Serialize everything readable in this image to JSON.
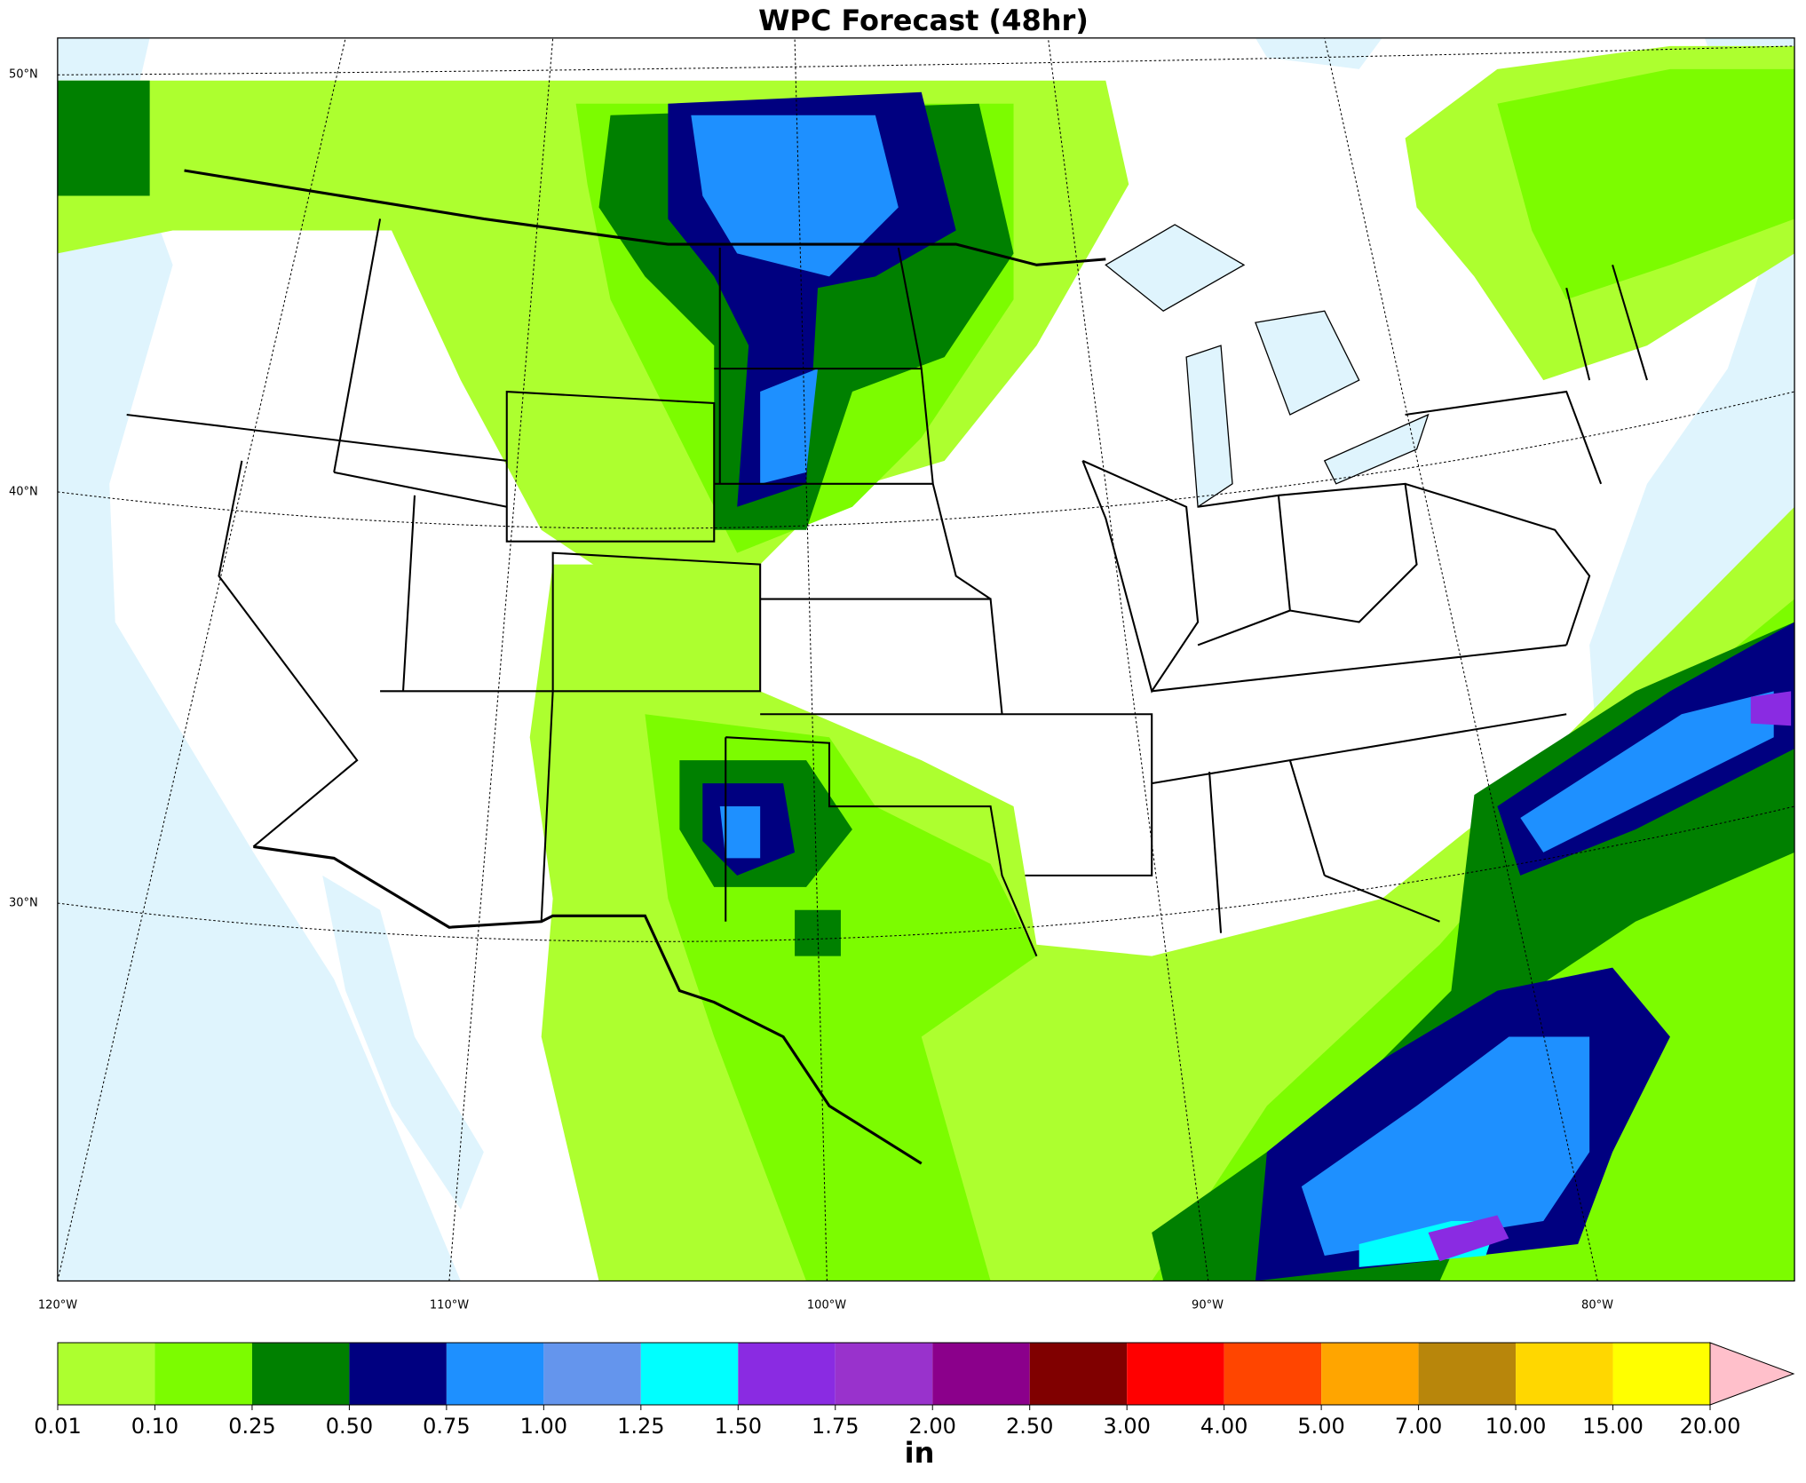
{
  "map": {
    "title": "WPC Forecast (48hr)",
    "lat_labels": [
      "50°N",
      "40°N",
      "30°N"
    ],
    "lon_labels": [
      "120°W",
      "110°W",
      "100°W",
      "90°W",
      "80°W"
    ],
    "colorbar": {
      "unit": "in",
      "levels": [
        {
          "value": 0.01,
          "label": "0.01"
        },
        {
          "value": 0.1,
          "label": "0.10"
        },
        {
          "value": 0.25,
          "label": "0.25"
        },
        {
          "value": 0.5,
          "label": "0.50"
        },
        {
          "value": 0.75,
          "label": "0.75"
        },
        {
          "value": 1,
          "label": "1.00"
        },
        {
          "value": 1.25,
          "label": "1.25"
        },
        {
          "value": 1.5,
          "label": "1.50"
        },
        {
          "value": 1.75,
          "label": "1.75"
        },
        {
          "value": 2,
          "label": "2.00"
        },
        {
          "value": 2.5,
          "label": "2.50"
        },
        {
          "value": 3,
          "label": "3.00"
        },
        {
          "value": 4,
          "label": "4.00"
        },
        {
          "value": 5,
          "label": "5.00"
        },
        {
          "value": 7,
          "label": "7.00"
        },
        {
          "value": 10,
          "label": "10.00"
        },
        {
          "value": 15,
          "label": "15.00"
        },
        {
          "value": 20,
          "label": "20.00"
        }
      ],
      "colors": [
        "#adff2f",
        "#7cfc00",
        "#008000",
        "#000080",
        "#1e90ff",
        "#6495ed",
        "#00ffff",
        "#8a2be2",
        "#9932cc",
        "#8b008b",
        "#800000",
        "#ff0000",
        "#ff4500",
        "#ffa500",
        "#b8860b",
        "#ffd700",
        "#ffff00"
      ],
      "extend_color": "#ffc0cb"
    }
  }
}
